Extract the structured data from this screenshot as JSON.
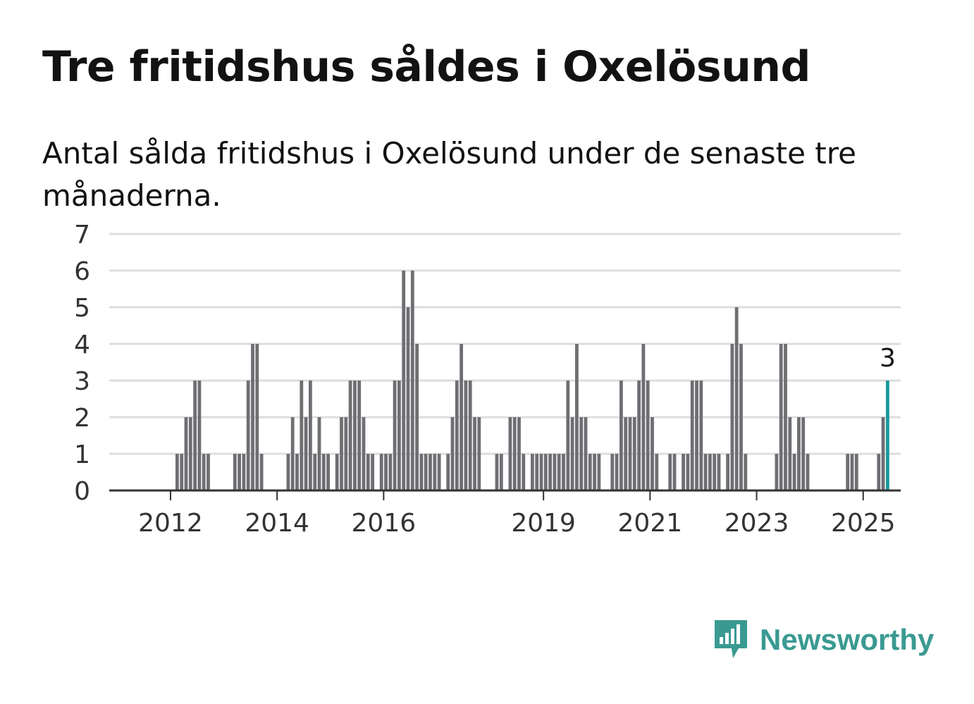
{
  "title": "Tre fritidshus såldes i Oxelösund",
  "subtitle": "Antal sålda fritidshus i Oxelösund under de senaste tre månaderna.",
  "brand": {
    "name": "Newsworthy",
    "icon": "bar-chart-speech-bubble-icon",
    "color": "#3a9a92"
  },
  "chart_data": {
    "type": "bar",
    "title": "Tre fritidshus såldes i Oxelösund",
    "subtitle": "Antal sålda fritidshus i Oxelösund under de senaste tre månaderna.",
    "xlabel": "",
    "ylabel": "",
    "ylim": [
      0,
      7
    ],
    "y_ticks": [
      0,
      1,
      2,
      3,
      4,
      5,
      6,
      7
    ],
    "x_tick_labels": [
      "2012",
      "2014",
      "2016",
      "2019",
      "2021",
      "2023",
      "2025"
    ],
    "grid": true,
    "frequency": "monthly",
    "start": "2011-01",
    "end": "2025-05",
    "bar_color": "#6f6e73",
    "highlight_color": "#1a9a9a",
    "highlight_label": "3",
    "values": [
      0,
      0,
      0,
      0,
      0,
      0,
      0,
      0,
      0,
      0,
      0,
      0,
      0,
      1,
      1,
      2,
      2,
      3,
      3,
      1,
      1,
      0,
      0,
      0,
      0,
      0,
      1,
      1,
      1,
      3,
      4,
      4,
      1,
      0,
      0,
      0,
      0,
      0,
      1,
      2,
      1,
      3,
      2,
      3,
      1,
      2,
      1,
      1,
      0,
      1,
      2,
      2,
      3,
      3,
      3,
      2,
      1,
      1,
      0,
      1,
      1,
      1,
      3,
      3,
      6,
      5,
      6,
      4,
      1,
      1,
      1,
      1,
      1,
      0,
      1,
      2,
      3,
      4,
      3,
      3,
      2,
      2,
      0,
      0,
      0,
      1,
      1,
      0,
      2,
      2,
      2,
      1,
      0,
      1,
      1,
      1,
      1,
      1,
      1,
      1,
      1,
      3,
      2,
      4,
      2,
      2,
      1,
      1,
      1,
      0,
      0,
      1,
      1,
      3,
      2,
      2,
      2,
      3,
      4,
      3,
      2,
      1,
      0,
      0,
      1,
      1,
      0,
      1,
      1,
      3,
      3,
      3,
      1,
      1,
      1,
      1,
      0,
      1,
      4,
      5,
      4,
      1,
      0,
      0,
      0,
      0,
      0,
      0,
      1,
      4,
      4,
      2,
      1,
      2,
      2,
      1,
      0,
      0,
      0,
      0,
      0,
      0,
      0,
      0,
      1,
      1,
      1,
      0,
      0,
      0,
      0,
      1,
      2,
      3
    ]
  }
}
